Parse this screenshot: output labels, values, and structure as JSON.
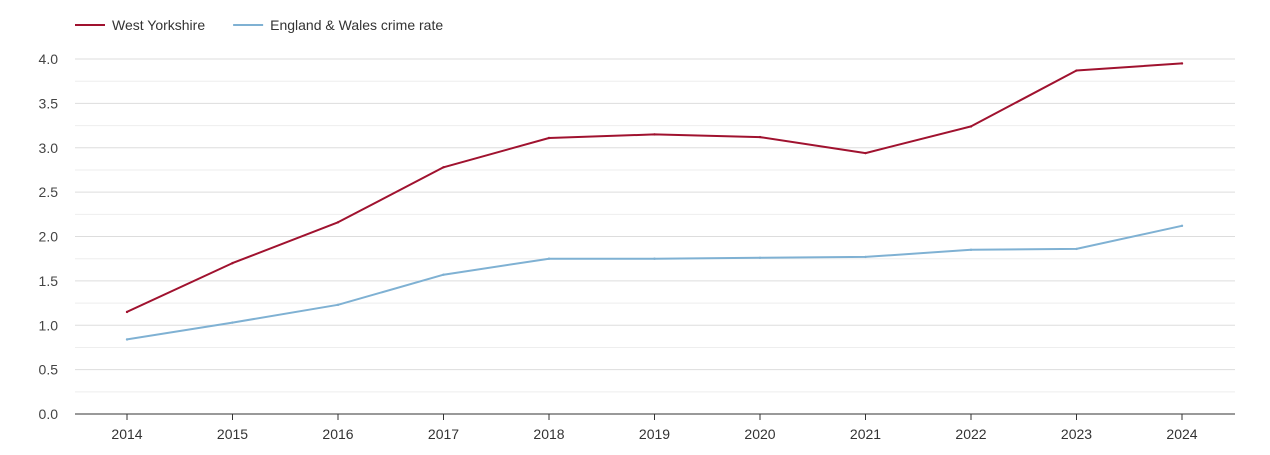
{
  "chart_data": {
    "type": "line",
    "title": "",
    "xlabel": "",
    "ylabel": "",
    "x": [
      "2014",
      "2015",
      "2016",
      "2017",
      "2018",
      "2019",
      "2020",
      "2021",
      "2022",
      "2023",
      "2024"
    ],
    "ylim": [
      0,
      4.0
    ],
    "yticks": [
      "0.0",
      "0.5",
      "1.0",
      "1.5",
      "2.0",
      "2.5",
      "3.0",
      "3.5",
      "4.0"
    ],
    "grid": true,
    "legend_position": "top-left",
    "series": [
      {
        "name": "West Yorkshire",
        "color": "#a0122f",
        "values": [
          1.15,
          1.7,
          2.16,
          2.78,
          3.11,
          3.15,
          3.12,
          2.94,
          3.24,
          3.87,
          3.95
        ]
      },
      {
        "name": "England & Wales crime rate",
        "color": "#7fb1d3",
        "values": [
          0.84,
          1.03,
          1.23,
          1.57,
          1.75,
          1.75,
          1.76,
          1.77,
          1.85,
          1.86,
          2.12
        ]
      }
    ]
  }
}
